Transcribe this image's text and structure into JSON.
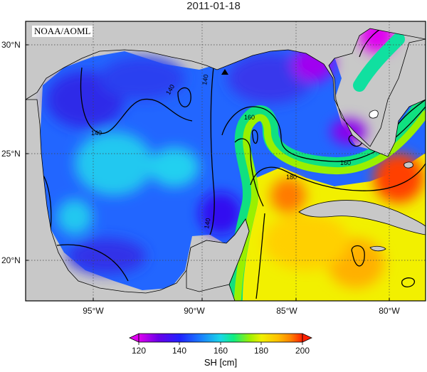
{
  "title": "2011-01-18",
  "agency_label": "NOAA/AOML",
  "latitude_labels": [
    "30°N",
    "25°N",
    "20°N"
  ],
  "longitude_labels": [
    "95°W",
    "90°W",
    "85°W",
    "80°W"
  ],
  "colorbar": {
    "label": "SH [cm]",
    "ticks": [
      "120",
      "140",
      "160",
      "180",
      "200"
    ],
    "range": [
      120,
      200
    ],
    "colors": [
      "#e000f0",
      "#6a00e8",
      "#2020ff",
      "#1a78ff",
      "#1ad8e8",
      "#10ee80",
      "#a0f000",
      "#f0f000",
      "#ffc000",
      "#ff8000",
      "#ff2000"
    ]
  },
  "contours": {
    "levels": [
      140,
      160,
      180
    ],
    "labels": [
      "140",
      "140",
      "140",
      "140",
      "160",
      "160",
      "180",
      "160"
    ]
  },
  "colors": {
    "land": "#c8c8c8",
    "land_edge": "#000000",
    "gridline": "#555555"
  },
  "marker": {
    "shape": "triangle",
    "color": "#000000"
  }
}
